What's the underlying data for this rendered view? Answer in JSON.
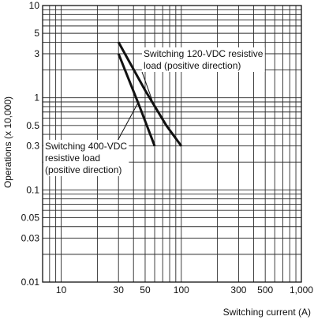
{
  "chart_data": {
    "type": "line",
    "title": "",
    "xlabel": "Switching current (A)",
    "ylabel": "Operations (x 10,000)",
    "xscale": "log",
    "yscale": "log",
    "xlim": [
      7,
      1000
    ],
    "ylim": [
      0.01,
      10
    ],
    "x_ticks": [
      {
        "value": 10,
        "label": "10"
      },
      {
        "value": 30,
        "label": "30"
      },
      {
        "value": 50,
        "label": "50"
      },
      {
        "value": 100,
        "label": "100"
      },
      {
        "value": 300,
        "label": "300"
      },
      {
        "value": 500,
        "label": "500"
      },
      {
        "value": 1000,
        "label": "1,000"
      }
    ],
    "y_ticks": [
      {
        "value": 10,
        "label": "10"
      },
      {
        "value": 5,
        "label": "5"
      },
      {
        "value": 3,
        "label": "3"
      },
      {
        "value": 1,
        "label": "1"
      },
      {
        "value": 0.5,
        "label": "0.5"
      },
      {
        "value": 0.3,
        "label": "0.3"
      },
      {
        "value": 0.1,
        "label": "0.1"
      },
      {
        "value": 0.05,
        "label": "0.05"
      },
      {
        "value": 0.03,
        "label": "0.03"
      },
      {
        "value": 0.01,
        "label": "0.01"
      }
    ],
    "grid": true,
    "series": [
      {
        "label_lines": [
          "Switching 120-VDC resistive",
          "load (positive direction)"
        ],
        "color": "#111111",
        "points": [
          [
            30,
            4
          ],
          [
            50,
            1.2
          ],
          [
            75,
            0.5
          ],
          [
            100,
            0.3
          ]
        ]
      },
      {
        "label_lines": [
          "Switching 400-VDC",
          "resistive load",
          "(positive direction)"
        ],
        "color": "#111111",
        "points": [
          [
            30,
            3
          ],
          [
            45,
            0.8
          ],
          [
            60,
            0.3
          ]
        ]
      }
    ]
  }
}
